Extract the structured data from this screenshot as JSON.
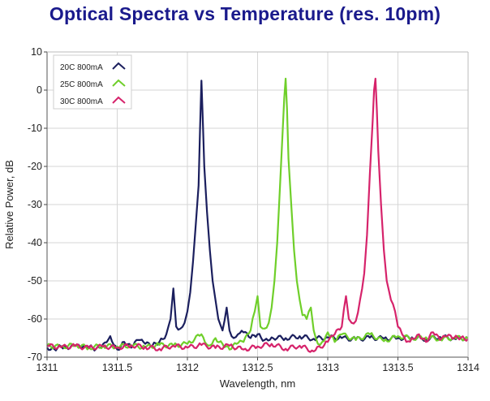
{
  "chart_data": {
    "type": "line",
    "title": "Optical Spectra vs Temperature (res. 10pm)",
    "xlabel": "Wavelength, nm",
    "ylabel": "Relative Power, dB",
    "xlim": [
      1311,
      1314
    ],
    "ylim": [
      -70,
      10
    ],
    "xticks": [
      "1311",
      "1311.5",
      "1312",
      "1312.5",
      "1313",
      "1313.5",
      "1314"
    ],
    "yticks": [
      "10",
      "0",
      "-10",
      "-20",
      "-30",
      "-40",
      "-50",
      "-60",
      "-70"
    ],
    "grid": true,
    "legend_position": "top-left",
    "series": [
      {
        "name": "20C 800mA",
        "color": "#1b1f5e",
        "x": [
          1311.0,
          1311.05,
          1311.1,
          1311.15,
          1311.2,
          1311.25,
          1311.3,
          1311.35,
          1311.4,
          1311.45,
          1311.5,
          1311.55,
          1311.6,
          1311.65,
          1311.7,
          1311.75,
          1311.8,
          1311.85,
          1311.88,
          1311.9,
          1311.92,
          1311.95,
          1311.98,
          1312.0,
          1312.02,
          1312.04,
          1312.06,
          1312.08,
          1312.09,
          1312.1,
          1312.11,
          1312.12,
          1312.14,
          1312.16,
          1312.18,
          1312.2,
          1312.22,
          1312.25,
          1312.28,
          1312.3,
          1312.33,
          1312.36,
          1312.4,
          1312.45,
          1312.5,
          1312.55,
          1312.6,
          1312.7,
          1312.8,
          1312.9,
          1313.0,
          1313.1,
          1313.2,
          1313.3,
          1313.4,
          1313.5,
          1313.6,
          1313.7,
          1313.8,
          1313.9,
          1314.0
        ],
        "y": [
          -67.5,
          -67.8,
          -67.2,
          -67.9,
          -67.0,
          -67.6,
          -67.3,
          -67.8,
          -66.5,
          -64.5,
          -68.0,
          -66.0,
          -67.5,
          -65.5,
          -66.5,
          -67.0,
          -66.0,
          -64.0,
          -60.0,
          -52.0,
          -62.0,
          -62.5,
          -61.0,
          -58.0,
          -53.0,
          -45.0,
          -35.0,
          -25.0,
          -10.0,
          2.5,
          -8.0,
          -20.0,
          -32.0,
          -42.0,
          -50.0,
          -55.0,
          -60.0,
          -63.0,
          -57.0,
          -63.0,
          -65.0,
          -64.0,
          -63.5,
          -65.0,
          -64.0,
          -65.5,
          -64.8,
          -65.0,
          -64.5,
          -65.2,
          -64.8,
          -65.0,
          -65.3,
          -64.9,
          -65.1,
          -65.0,
          -64.8,
          -65.2,
          -64.7,
          -65.1,
          -65.0
        ]
      },
      {
        "name": "25C 800mA",
        "color": "#6fcf2a",
        "x": [
          1311.0,
          1311.1,
          1311.2,
          1311.3,
          1311.4,
          1311.5,
          1311.6,
          1311.7,
          1311.8,
          1311.9,
          1312.0,
          1312.1,
          1312.15,
          1312.2,
          1312.25,
          1312.3,
          1312.35,
          1312.4,
          1312.45,
          1312.48,
          1312.5,
          1312.52,
          1312.55,
          1312.58,
          1312.6,
          1312.62,
          1312.64,
          1312.66,
          1312.68,
          1312.69,
          1312.7,
          1312.71,
          1312.72,
          1312.74,
          1312.76,
          1312.78,
          1312.8,
          1312.82,
          1312.85,
          1312.88,
          1312.9,
          1312.93,
          1312.96,
          1313.0,
          1313.05,
          1313.1,
          1313.2,
          1313.3,
          1313.4,
          1313.5,
          1313.6,
          1313.7,
          1313.8,
          1313.9,
          1314.0
        ],
        "y": [
          -67.0,
          -67.3,
          -66.8,
          -67.5,
          -67.0,
          -67.2,
          -66.9,
          -67.4,
          -66.8,
          -67.0,
          -66.5,
          -64.0,
          -67.0,
          -65.0,
          -66.5,
          -68.0,
          -66.5,
          -66.0,
          -63.0,
          -58.0,
          -54.0,
          -62.0,
          -62.5,
          -61.0,
          -57.0,
          -50.0,
          -40.0,
          -25.0,
          -10.0,
          -2.0,
          3.0,
          -5.0,
          -18.0,
          -30.0,
          -42.0,
          -50.0,
          -55.0,
          -59.0,
          -60.0,
          -57.0,
          -63.0,
          -66.5,
          -66.0,
          -63.5,
          -66.0,
          -64.0,
          -65.5,
          -64.0,
          -65.8,
          -64.5,
          -65.0,
          -64.8,
          -65.2,
          -64.9,
          -65.1
        ]
      },
      {
        "name": "30C 800mA",
        "color": "#d6236b",
        "x": [
          1311.0,
          1311.1,
          1311.2,
          1311.3,
          1311.4,
          1311.5,
          1311.6,
          1311.7,
          1311.8,
          1311.9,
          1312.0,
          1312.1,
          1312.2,
          1312.3,
          1312.4,
          1312.5,
          1312.6,
          1312.7,
          1312.8,
          1312.9,
          1313.0,
          1313.05,
          1313.1,
          1313.13,
          1313.15,
          1313.17,
          1313.2,
          1313.23,
          1313.26,
          1313.28,
          1313.3,
          1313.32,
          1313.33,
          1313.34,
          1313.35,
          1313.36,
          1313.38,
          1313.4,
          1313.42,
          1313.45,
          1313.48,
          1313.5,
          1313.53,
          1313.56,
          1313.6,
          1313.65,
          1313.7,
          1313.75,
          1313.8,
          1313.85,
          1313.9,
          1313.95,
          1314.0
        ],
        "y": [
          -67.0,
          -67.4,
          -67.1,
          -67.6,
          -67.2,
          -67.5,
          -66.9,
          -67.3,
          -67.8,
          -67.0,
          -67.5,
          -66.8,
          -67.6,
          -67.0,
          -68.0,
          -67.2,
          -66.5,
          -67.8,
          -67.0,
          -68.5,
          -66.0,
          -64.0,
          -62.0,
          -54.0,
          -60.0,
          -61.0,
          -60.5,
          -55.0,
          -48.0,
          -38.0,
          -22.0,
          -8.0,
          0.0,
          3.0,
          -5.0,
          -16.0,
          -30.0,
          -42.0,
          -50.0,
          -55.0,
          -58.0,
          -62.0,
          -64.0,
          -66.0,
          -65.0,
          -64.0,
          -66.0,
          -63.5,
          -65.5,
          -64.5,
          -65.0,
          -64.8,
          -65.2
        ]
      }
    ]
  }
}
